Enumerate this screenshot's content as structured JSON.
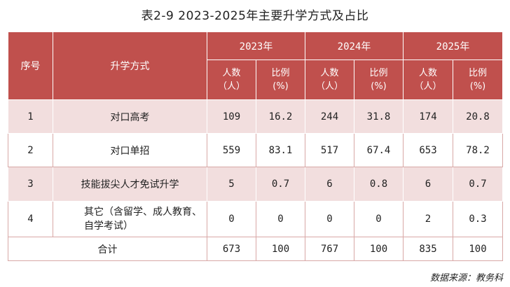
{
  "title": "表2-9 2023-2025年主要升学方式及占比",
  "headers": {
    "seq": "序号",
    "method": "升学方式",
    "years": [
      "2023年",
      "2024年",
      "2025年"
    ],
    "count_label": "人数（人）",
    "count_line1": "人数",
    "count_line2": "（人）",
    "ratio_line1": "比例",
    "ratio_line2": "(%)"
  },
  "rows": [
    {
      "seq": "1",
      "method": "对口高考",
      "method_line2": "",
      "c2023": "109",
      "r2023": "16.2",
      "c2024": "244",
      "r2024": "31.8",
      "c2025": "174",
      "r2025": "20.8"
    },
    {
      "seq": "2",
      "method": "对口单招",
      "method_line2": "",
      "c2023": "559",
      "r2023": "83.1",
      "c2024": "517",
      "r2024": "67.4",
      "c2025": "653",
      "r2025": "78.2"
    },
    {
      "seq": "3",
      "method": "技能拔尖人才免试升学",
      "method_line2": "",
      "c2023": "5",
      "r2023": "0.7",
      "c2024": "6",
      "r2024": "0.8",
      "c2025": "6",
      "r2025": "0.7"
    },
    {
      "seq": "4",
      "method": "其它（含留学、成人教育、",
      "method_line2": "自学考试）",
      "c2023": "0",
      "r2023": "0",
      "c2024": "0",
      "r2024": "0",
      "c2025": "2",
      "r2025": "0.3"
    }
  ],
  "total": {
    "label": "合计",
    "c2023": "673",
    "r2023": "100",
    "c2024": "767",
    "r2024": "100",
    "c2025": "835",
    "r2025": "100"
  },
  "source": "数据来源：教务科",
  "colors": {
    "header_bg": "#c0504d",
    "odd_row_bg": "#f2dede"
  }
}
